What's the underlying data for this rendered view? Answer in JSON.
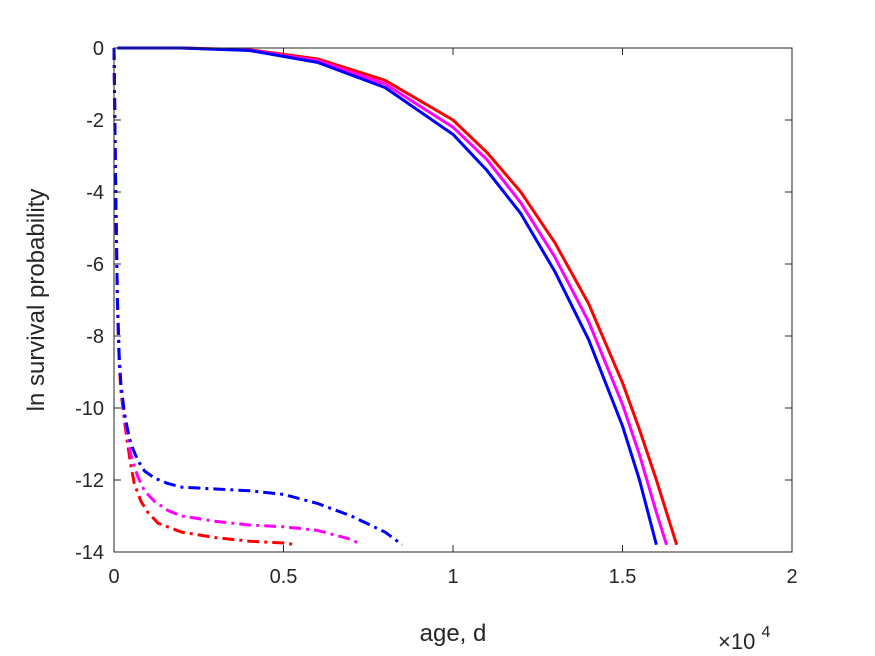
{
  "chart_data": {
    "type": "line",
    "xlabel": "age, d",
    "ylabel": "ln survival probability",
    "x_multiplier": "×10",
    "x_multiplier_exp": "4",
    "xlim": [
      0,
      2
    ],
    "ylim": [
      -14,
      0
    ],
    "xticks": [
      "0",
      "0.5",
      "1",
      "1.5",
      "2"
    ],
    "yticks": [
      "0",
      "-2",
      "-4",
      "-6",
      "-8",
      "-10",
      "-12",
      "-14"
    ],
    "grid": false,
    "series": [
      {
        "color": "#ff0000",
        "style": "solid",
        "x": [
          0.01,
          0.2,
          0.4,
          0.6,
          0.8,
          1.0,
          1.1,
          1.2,
          1.3,
          1.4,
          1.5,
          1.55,
          1.6,
          1.66
        ],
        "y": [
          0,
          0,
          -0.05,
          -0.3,
          -0.9,
          -2.0,
          -2.9,
          -4.0,
          -5.4,
          -7.1,
          -9.3,
          -10.6,
          -12.0,
          -13.8
        ]
      },
      {
        "color": "#ff00ff",
        "style": "solid",
        "x": [
          0.01,
          0.2,
          0.4,
          0.6,
          0.8,
          1.0,
          1.1,
          1.2,
          1.3,
          1.4,
          1.5,
          1.55,
          1.6,
          1.63
        ],
        "y": [
          0,
          0,
          -0.06,
          -0.35,
          -1.0,
          -2.2,
          -3.1,
          -4.3,
          -5.8,
          -7.6,
          -9.9,
          -11.3,
          -12.9,
          -13.8
        ]
      },
      {
        "color": "#0000ff",
        "style": "solid",
        "x": [
          0.01,
          0.2,
          0.4,
          0.6,
          0.8,
          1.0,
          1.1,
          1.2,
          1.3,
          1.4,
          1.5,
          1.55,
          1.6
        ],
        "y": [
          0,
          0,
          -0.07,
          -0.4,
          -1.1,
          -2.4,
          -3.4,
          -4.6,
          -6.2,
          -8.1,
          -10.5,
          -12.0,
          -13.8
        ]
      },
      {
        "color": "#ff0000",
        "style": "dashdot",
        "x": [
          0.0,
          0.005,
          0.01,
          0.015,
          0.02,
          0.03,
          0.04,
          0.05,
          0.06,
          0.08,
          0.1,
          0.13,
          0.2,
          0.3,
          0.4,
          0.5,
          0.54
        ],
        "y": [
          0,
          -4,
          -7,
          -8.7,
          -9.5,
          -10.3,
          -11.0,
          -11.6,
          -12.1,
          -12.6,
          -12.9,
          -13.2,
          -13.45,
          -13.6,
          -13.7,
          -13.75,
          -13.8
        ]
      },
      {
        "color": "#ff00ff",
        "style": "dashdot",
        "x": [
          0.0,
          0.005,
          0.01,
          0.015,
          0.02,
          0.03,
          0.04,
          0.05,
          0.07,
          0.09,
          0.12,
          0.16,
          0.2,
          0.3,
          0.4,
          0.5,
          0.6,
          0.7,
          0.73
        ],
        "y": [
          0,
          -4,
          -7,
          -8.6,
          -9.4,
          -10.2,
          -10.8,
          -11.3,
          -11.9,
          -12.3,
          -12.6,
          -12.85,
          -13.0,
          -13.15,
          -13.25,
          -13.3,
          -13.4,
          -13.65,
          -13.8
        ]
      },
      {
        "color": "#0000ff",
        "style": "dashdot",
        "x": [
          0.0,
          0.005,
          0.01,
          0.015,
          0.02,
          0.03,
          0.04,
          0.05,
          0.07,
          0.09,
          0.12,
          0.16,
          0.2,
          0.3,
          0.4,
          0.5,
          0.6,
          0.7,
          0.8,
          0.85
        ],
        "y": [
          0,
          -4,
          -7,
          -8.5,
          -9.3,
          -10.1,
          -10.6,
          -11.0,
          -11.45,
          -11.75,
          -11.95,
          -12.1,
          -12.2,
          -12.25,
          -12.3,
          -12.4,
          -12.65,
          -13.0,
          -13.45,
          -13.8
        ]
      }
    ]
  }
}
